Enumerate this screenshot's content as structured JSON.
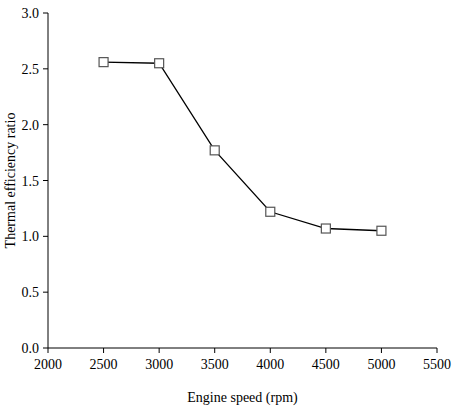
{
  "chart_data": {
    "type": "line",
    "x_label": "Engine speed (rpm)",
    "y_label": "Thermal efficiency ratio",
    "x": [
      2500,
      3000,
      3500,
      4000,
      4500,
      5000
    ],
    "values": [
      2.56,
      2.55,
      1.77,
      1.22,
      1.07,
      1.05
    ],
    "color": "#000000",
    "marker": "square",
    "xlim": [
      2000,
      5500
    ],
    "xticks": [
      2000,
      2500,
      3000,
      3500,
      4000,
      4500,
      5000,
      5500
    ],
    "ylim": [
      0,
      3
    ],
    "yticks": [
      {
        "value": 0,
        "label": "0.0"
      },
      0.5,
      {
        "value": 1,
        "label": "1.0"
      },
      1.5,
      {
        "value": 2,
        "label": "2.0"
      },
      2.5,
      {
        "value": 3,
        "label": "3.0"
      }
    ],
    "grid": false
  }
}
